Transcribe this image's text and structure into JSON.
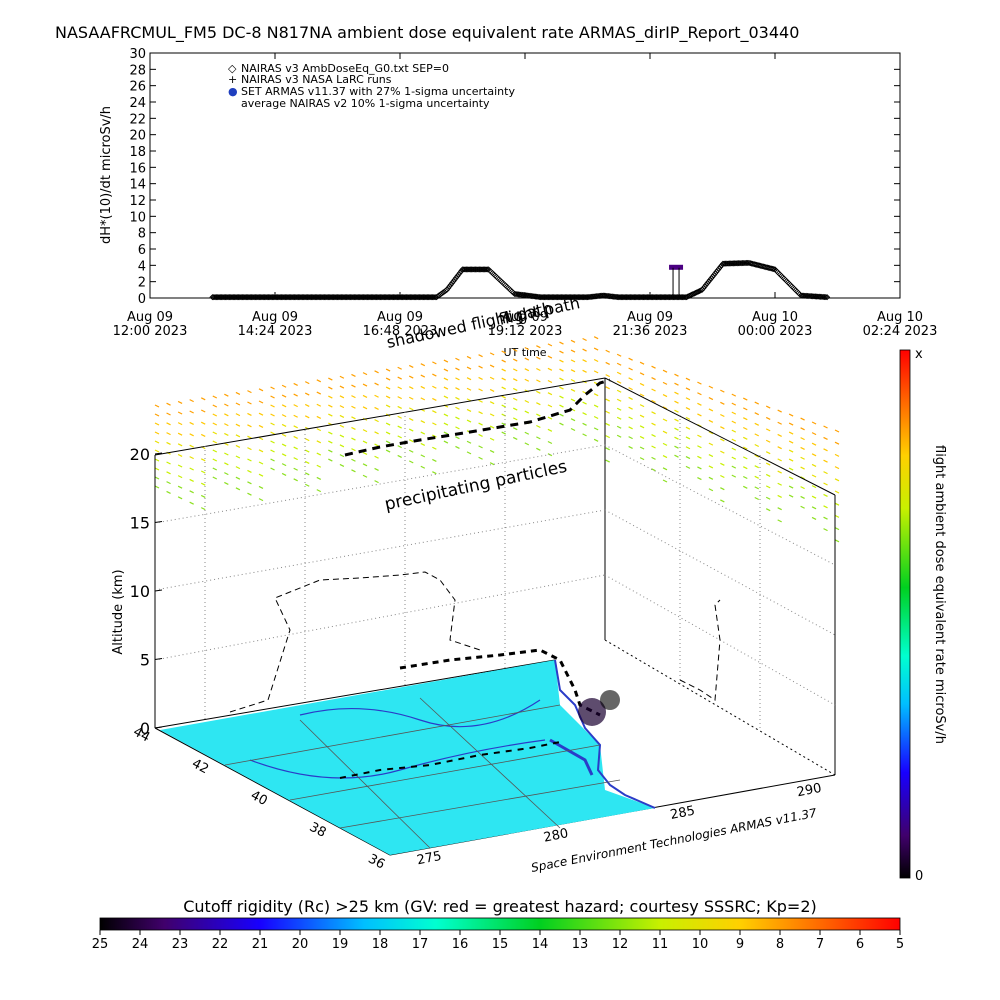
{
  "chart_data": [
    {
      "type": "scatter",
      "title": "NASAAFRCMUL_FM5 DC-8   N817NA ambient dose equivalent rate ARMAS_dirIP_Report_03440",
      "xlabel": "UT time",
      "ylabel": "dH*(10)/dt microSv/h",
      "ylim": [
        0,
        30
      ],
      "yticks": [
        "0",
        "2",
        "4",
        "6",
        "8",
        "10",
        "12",
        "14",
        "16",
        "18",
        "20",
        "22",
        "24",
        "26",
        "28",
        "30"
      ],
      "xticks": [
        {
          "line1": "Aug 09",
          "line2": "12:00 2023"
        },
        {
          "line1": "Aug 09",
          "line2": "14:24 2023"
        },
        {
          "line1": "Aug 09",
          "line2": "16:48 2023"
        },
        {
          "line1": "Aug 09",
          "line2": "19:12 2023"
        },
        {
          "line1": "Aug 09",
          "line2": "21:36 2023"
        },
        {
          "line1": "Aug 10",
          "line2": "00:00 2023"
        },
        {
          "line1": "Aug 10",
          "line2": "02:24 2023"
        }
      ],
      "legend_position": "top-left",
      "legend": [
        {
          "symbol": "◇",
          "label": "NAIRAS v3 AmbDoseEq_G0.txt SEP=0"
        },
        {
          "symbol": "+",
          "label": "NAIRAS v3 NASA LaRC runs"
        },
        {
          "symbol": "●",
          "label": "SET ARMAS v11.37 with 27% 1-sigma uncertainty"
        },
        {
          "symbol": "",
          "label": "average NAIRAS v2 10% 1-sigma uncertainty"
        }
      ],
      "x_hours": [
        13.2,
        17.5,
        17.7,
        18.0,
        18.5,
        19.0,
        19.5,
        20.4,
        20.7,
        21.0,
        21.6,
        22.3,
        22.6,
        23.0,
        23.5,
        24.0,
        24.5,
        25.0
      ],
      "y_values": [
        0.1,
        0.1,
        1.0,
        3.5,
        3.5,
        0.5,
        0.1,
        0.1,
        0.3,
        0.1,
        0.1,
        0.1,
        1.0,
        4.2,
        4.3,
        3.5,
        0.3,
        0.1
      ],
      "armas_point": {
        "x_hours": 22.1,
        "y": 3.7
      }
    },
    {
      "type": "scatter",
      "title": "",
      "zlabel": "Altitude (km)",
      "zticks": [
        "0",
        "5",
        "10",
        "15",
        "20"
      ],
      "lat_ticks": [
        "44",
        "42",
        "40",
        "38",
        "36"
      ],
      "lon_ticks": [
        "275",
        "280",
        "285",
        "290"
      ],
      "annotations": {
        "shadowed": "shadowed flight path",
        "flight_path": "flight path",
        "precipitating": "precipitating particles",
        "credit": "Space Environment Technologies ARMAS v11.37"
      },
      "colorbar": {
        "label": "flight ambient dose equivalent rate microSv/h",
        "max_label": "x",
        "min_label": "0"
      }
    },
    {
      "type": "heatmap",
      "title": "Cutoff rigidity (Rc) >25 km (GV: red = greatest hazard; courtesy SSSRC; Kp=2)",
      "ticks": [
        "25",
        "24",
        "23",
        "22",
        "21",
        "20",
        "19",
        "18",
        "17",
        "16",
        "15",
        "14",
        "13",
        "12",
        "11",
        "10",
        "9",
        "8",
        "7",
        "6",
        "5"
      ]
    }
  ],
  "colors": {
    "map_fill": "#2ee6f2",
    "coast": "#2a3cc8",
    "armas": "#4b0082"
  }
}
